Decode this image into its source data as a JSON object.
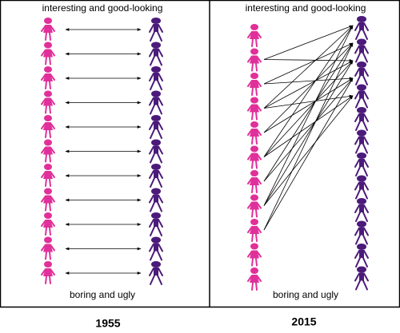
{
  "panels": [
    {
      "top_label": "interesting and good-looking",
      "bottom_label": "boring and ugly",
      "year": "1955"
    },
    {
      "top_label": "interesting and good-looking",
      "bottom_label": "boring and ugly",
      "year": "2015"
    }
  ]
}
